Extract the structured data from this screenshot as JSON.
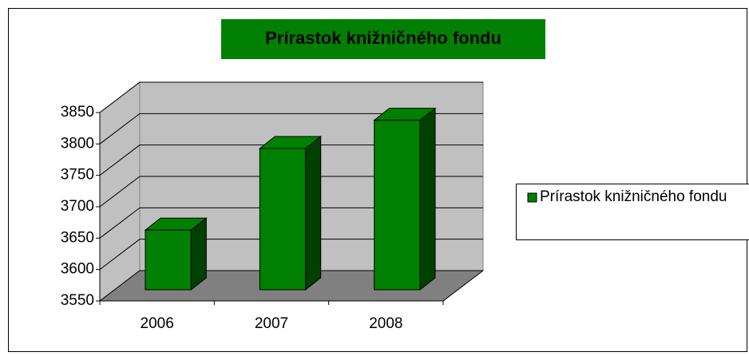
{
  "chart_data": {
    "type": "bar3d",
    "title": "Prírastok knižničného fondu",
    "categories": [
      "2006",
      "2007",
      "2008"
    ],
    "series": [
      {
        "name": "Prírastok knižničného fondu",
        "color": "#008000",
        "values": [
          3645,
          3775,
          3820
        ]
      }
    ],
    "ylim": [
      3550,
      3850
    ],
    "yticks": [
      3550,
      3600,
      3650,
      3700,
      3750,
      3800,
      3850
    ],
    "grid": true,
    "legend": "right"
  }
}
